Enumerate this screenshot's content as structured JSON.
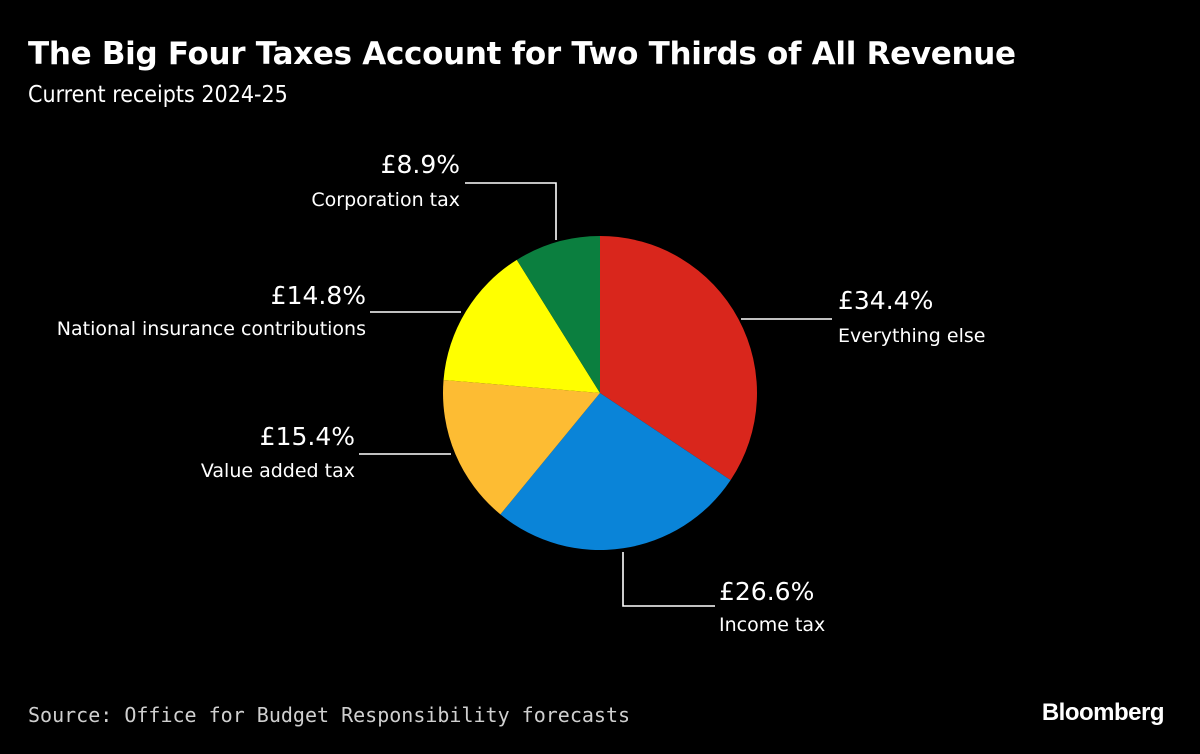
{
  "chart_data": {
    "type": "pie",
    "title": "The Big Four Taxes Account for Two Thirds of All Revenue",
    "subtitle": "Current receipts 2024-25",
    "slices": [
      {
        "label": "Everything else",
        "value": 34.4,
        "value_label": "£34.4%",
        "color": "#d9261c"
      },
      {
        "label": "Income tax",
        "value": 26.6,
        "value_label": "£26.6%",
        "color": "#0a84d8"
      },
      {
        "label": "Value added tax",
        "value": 15.4,
        "value_label": "£15.4%",
        "color": "#fdbc33"
      },
      {
        "label": "National insurance contributions",
        "value": 14.8,
        "value_label": "£14.8%",
        "color": "#ffff00"
      },
      {
        "label": "Corporation tax",
        "value": 8.9,
        "value_label": "£8.9%",
        "color": "#0b7f3f"
      }
    ],
    "source": "Source: Office for Budget Responsibility forecasts"
  },
  "brand": "Bloomberg"
}
